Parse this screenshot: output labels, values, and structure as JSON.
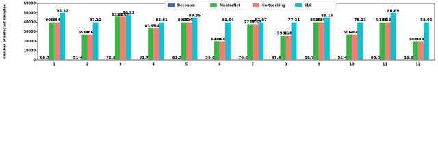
{
  "chart_data": {
    "type": "bar",
    "y_label": "number of selected samples",
    "categories": [
      "1",
      "2",
      "3",
      "4",
      "5",
      "6",
      "7",
      "8",
      "9",
      "10",
      "11",
      "12"
    ],
    "series": [
      {
        "name": "Decouple",
        "color": "#4169a8",
        "values": [
          300,
          300,
          300,
          300,
          300,
          300,
          300,
          300,
          300,
          300,
          300,
          300
        ],
        "bar_labels": [
          "60.79",
          "51.47",
          "72.60",
          "61.73",
          "61.33",
          "39.62",
          "70.62",
          "47.44",
          "58.71",
          "52.42",
          "68.05",
          "39.88"
        ]
      },
      {
        "name": "MentorNet",
        "color": "#3cb44b",
        "values": [
          40000,
          27000,
          46000,
          34000,
          40000,
          20000,
          38000,
          26000,
          40000,
          27000,
          40000,
          20000
        ],
        "bar_labels": [
          "90.38",
          "69.48",
          "93.68",
          "83.23",
          "89.39",
          "64.36",
          "77.73",
          "59.06",
          "86.49",
          "60.20",
          "91.68",
          "80.33"
        ]
      },
      {
        "name": "Co-teaching",
        "color": "#f07f6f",
        "values": [
          40000,
          27000,
          46000,
          34000,
          40000,
          20000,
          38000,
          26000,
          40000,
          27000,
          40000,
          20000
        ],
        "bar_labels": [
          "90.43",
          "69.65",
          "93.67",
          "83.43",
          "89.42",
          "64.61",
          "77.63",
          "59.44",
          "86.43",
          "60.45",
          "91.38",
          "80.43"
        ]
      },
      {
        "name": "CLC",
        "color": "#17becf",
        "values": [
          50000,
          40000,
          48000,
          40000,
          45000,
          40000,
          40000,
          40000,
          45000,
          40000,
          50000,
          40000
        ],
        "bar_labels": [
          "95.32",
          "87.12",
          "96.23",
          "82.81",
          "89.35",
          "81.54",
          "87.87",
          "77.31",
          "88.16",
          "78.13",
          "80.89",
          "58.05"
        ]
      }
    ],
    "ylim": [
      0,
      60000
    ],
    "yticks": [
      0,
      10000,
      20000,
      30000,
      40000,
      50000,
      60000
    ],
    "grid": false,
    "legend": "top"
  }
}
